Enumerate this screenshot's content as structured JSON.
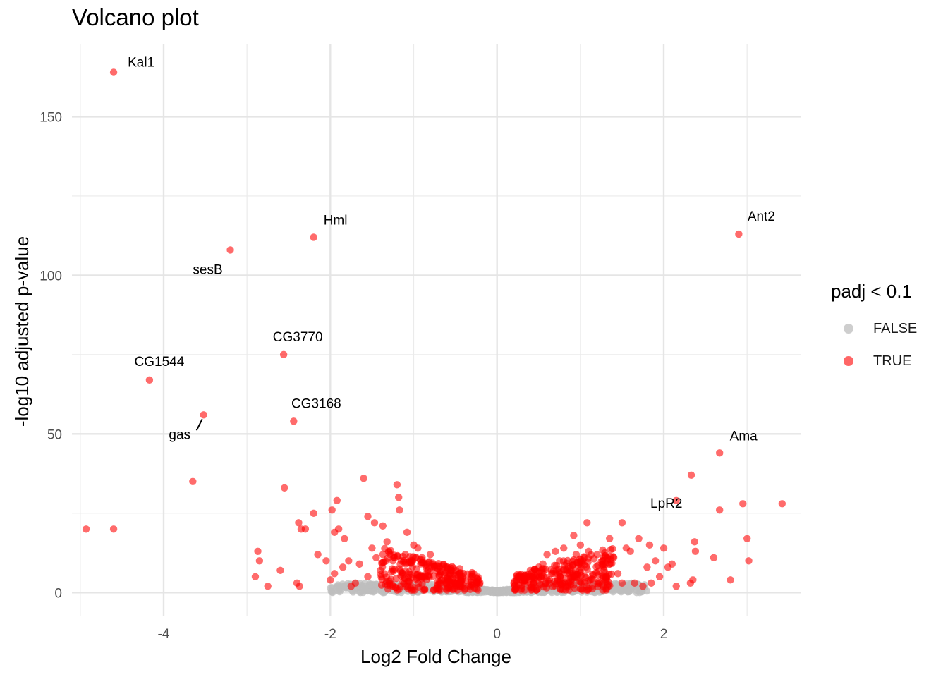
{
  "title": "Volcano plot",
  "legend": {
    "title": "padj < 0.1",
    "items": [
      {
        "label": "FALSE",
        "color": "#bebebe"
      },
      {
        "label": "TRUE",
        "color": "#ff0000"
      }
    ]
  },
  "chart_data": {
    "type": "scatter",
    "title": "Volcano plot",
    "xlabel": "Log2 Fold Change",
    "ylabel": "-log10 adjusted p-value",
    "xlim": [
      -5.1,
      3.65
    ],
    "ylim": [
      -7.5,
      173
    ],
    "x_ticks": [
      -4,
      -2,
      0,
      2
    ],
    "y_ticks": [
      0,
      50,
      100,
      150
    ],
    "grid": true,
    "legend_position": "right",
    "colors": {
      "FALSE": "#bebebe",
      "TRUE": "#ff0000"
    },
    "labeled_points": [
      {
        "gene": "Kal1",
        "x": -4.6,
        "y": 164,
        "significant": true
      },
      {
        "gene": "Hml",
        "x": -2.2,
        "y": 112,
        "significant": true
      },
      {
        "gene": "sesB",
        "x": -3.2,
        "y": 108,
        "significant": true
      },
      {
        "gene": "CG3770",
        "x": -2.56,
        "y": 75,
        "significant": true
      },
      {
        "gene": "CG1544",
        "x": -4.17,
        "y": 67,
        "significant": true
      },
      {
        "gene": "gas",
        "x": -3.52,
        "y": 56,
        "significant": true
      },
      {
        "gene": "CG3168",
        "x": -2.44,
        "y": 54,
        "significant": true
      },
      {
        "gene": "Ant2",
        "x": 2.9,
        "y": 113,
        "significant": true
      },
      {
        "gene": "Ama",
        "x": 2.67,
        "y": 44,
        "significant": true
      },
      {
        "gene": "LpR2",
        "x": 2.15,
        "y": 29,
        "significant": true
      }
    ],
    "other_significant": [
      [
        -4.93,
        20
      ],
      [
        -4.6,
        20
      ],
      [
        -3.65,
        35
      ],
      [
        -2.87,
        13
      ],
      [
        -2.85,
        10
      ],
      [
        -2.9,
        5
      ],
      [
        -2.75,
        2
      ],
      [
        -2.6,
        7
      ],
      [
        -2.4,
        3
      ],
      [
        -2.37,
        2
      ],
      [
        -2.55,
        33
      ],
      [
        -2.38,
        22
      ],
      [
        -2.35,
        20
      ],
      [
        -2.3,
        20
      ],
      [
        -2.2,
        25
      ],
      [
        -2.15,
        12
      ],
      [
        -2.05,
        10
      ],
      [
        -1.98,
        26
      ],
      [
        -1.95,
        19
      ],
      [
        -1.92,
        29
      ],
      [
        -1.9,
        20
      ],
      [
        -1.83,
        17
      ],
      [
        -1.78,
        10
      ],
      [
        -1.6,
        36
      ],
      [
        -1.55,
        24
      ],
      [
        -1.47,
        22
      ],
      [
        -1.37,
        21
      ],
      [
        -1.32,
        16
      ],
      [
        -1.2,
        34
      ],
      [
        -1.18,
        30
      ],
      [
        -1.17,
        26
      ],
      [
        -1.08,
        19
      ],
      [
        -1.0,
        15
      ],
      [
        -1.85,
        8
      ],
      [
        -1.95,
        6
      ],
      [
        -2.0,
        4
      ],
      [
        -1.7,
        3
      ],
      [
        -1.65,
        9
      ],
      [
        -1.5,
        14
      ],
      [
        -1.45,
        11
      ],
      [
        -1.4,
        7
      ],
      [
        -1.3,
        13
      ],
      [
        -1.25,
        10
      ],
      [
        -1.1,
        12
      ],
      [
        -0.95,
        14
      ],
      [
        -0.9,
        11
      ],
      [
        -0.85,
        9
      ],
      [
        -0.8,
        12
      ],
      [
        -0.75,
        8
      ],
      [
        -1.75,
        2
      ],
      [
        -1.55,
        5
      ],
      [
        1.08,
        22
      ],
      [
        1.5,
        22
      ],
      [
        0.92,
        18
      ],
      [
        1.35,
        17
      ],
      [
        1.7,
        17
      ],
      [
        1.83,
        15
      ],
      [
        2.0,
        14
      ],
      [
        2.33,
        37
      ],
      [
        2.37,
        16
      ],
      [
        2.38,
        13
      ],
      [
        2.6,
        11
      ],
      [
        2.67,
        26
      ],
      [
        2.95,
        28
      ],
      [
        3.0,
        17
      ],
      [
        3.02,
        10
      ],
      [
        3.42,
        28
      ],
      [
        2.8,
        4
      ],
      [
        2.32,
        3
      ],
      [
        2.35,
        4
      ],
      [
        2.15,
        2
      ],
      [
        2.05,
        8
      ],
      [
        2.1,
        9
      ],
      [
        1.95,
        5
      ],
      [
        1.9,
        10
      ],
      [
        1.8,
        8
      ],
      [
        1.6,
        13
      ],
      [
        1.55,
        14
      ],
      [
        1.4,
        11
      ],
      [
        1.3,
        9
      ],
      [
        1.2,
        12
      ],
      [
        1.1,
        13
      ],
      [
        1.0,
        15
      ],
      [
        0.95,
        12
      ],
      [
        0.8,
        14
      ],
      [
        0.75,
        10
      ],
      [
        0.7,
        13
      ],
      [
        0.6,
        12
      ],
      [
        0.55,
        9
      ],
      [
        0.5,
        8
      ],
      [
        0.4,
        7
      ],
      [
        1.45,
        6
      ],
      [
        1.65,
        3
      ],
      [
        1.75,
        2
      ],
      [
        1.85,
        3
      ],
      [
        1.5,
        3
      ]
    ],
    "dense_clusters": [
      {
        "significant": true,
        "x_range": [
          -1.4,
          -0.2
        ],
        "y_max": 11,
        "count": 260
      },
      {
        "significant": true,
        "x_range": [
          0.2,
          1.4
        ],
        "y_max": 11,
        "count": 260
      },
      {
        "significant": false,
        "x_range": [
          -2.0,
          1.8
        ],
        "y_max": 3,
        "count": 650
      }
    ]
  }
}
